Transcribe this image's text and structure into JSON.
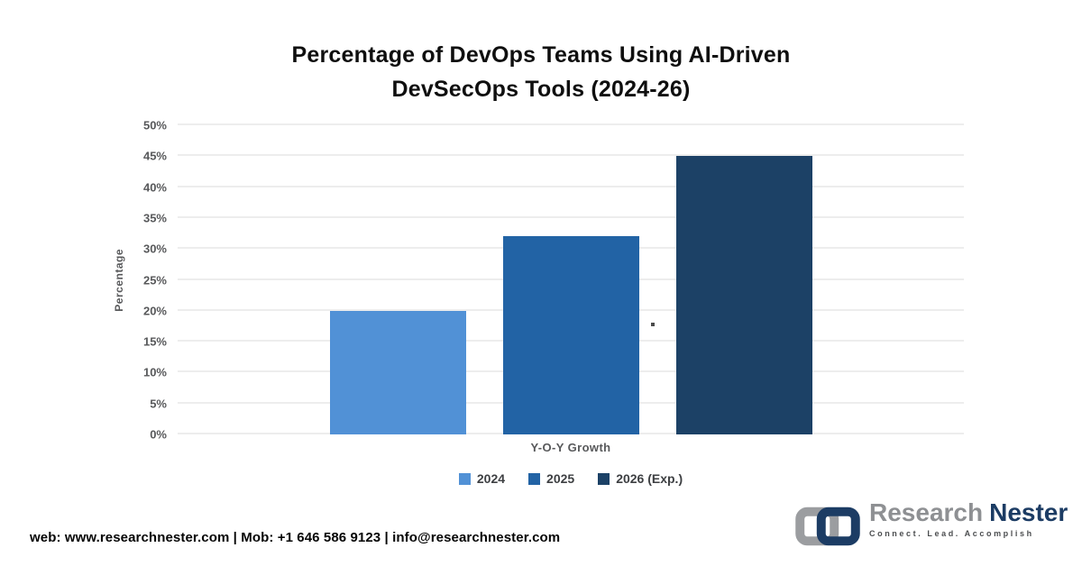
{
  "title": {
    "line1": "Percentage of DevOps Teams Using AI-Driven",
    "line2": "DevSecOps Tools (2024-26)"
  },
  "chart_data": {
    "type": "bar",
    "title": "Percentage of DevOps Teams Using AI-Driven DevSecOps Tools (2024-26)",
    "categories": [
      "2024",
      "2025",
      "2026 (Exp.)"
    ],
    "values": [
      20,
      32,
      45
    ],
    "xlabel": "Y-O-Y Growth",
    "ylabel": "Percentage",
    "ylim": [
      0,
      50
    ],
    "ytick_step": 5,
    "ytick_labels": [
      "0%",
      "5%",
      "10%",
      "15%",
      "20%",
      "25%",
      "30%",
      "35%",
      "40%",
      "45%",
      "50%"
    ],
    "grid": true,
    "legend_position": "bottom",
    "series_colors": [
      "#5191d6",
      "#2263a5",
      "#1c4166"
    ]
  },
  "legend": {
    "items": [
      {
        "label": "2024",
        "color": "#5191d6"
      },
      {
        "label": "2025",
        "color": "#2263a5"
      },
      {
        "label": "2026 (Exp.)",
        "color": "#1c4166"
      }
    ]
  },
  "footer": {
    "contact": "web: www.researchnester.com | Mob: +1 646 586 9123 | info@researchnester.com"
  },
  "logo": {
    "name_part1": "Research",
    "name_part2": "Nester",
    "tagline": "Connect. Lead. Accomplish",
    "icon": "chain-links-icon",
    "colors": {
      "gray": "#9b9da0",
      "navy": "#1c3c64"
    }
  }
}
